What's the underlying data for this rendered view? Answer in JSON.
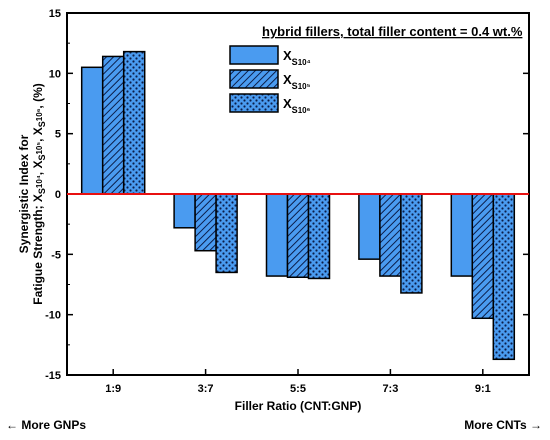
{
  "chart_data": {
    "type": "bar",
    "title": "hybrid fillers, total filler content = 0.4 wt.%",
    "xlabel": "Filler Ratio (CNT:GNP)",
    "ylabel_line1": "Synergistic Index for",
    "ylabel_line2": "Fatigue Strength; X",
    "ylabel_unit": "(%)",
    "categories": [
      "1:9",
      "3:7",
      "5:5",
      "7:3",
      "9:1"
    ],
    "ylim": [
      -15,
      15
    ],
    "yticks": [
      -15,
      -10,
      -5,
      0,
      5,
      10,
      15
    ],
    "series": [
      {
        "name": "X",
        "sub": "S",
        "exp": "10⁴",
        "pattern": "solid",
        "values": [
          10.5,
          -2.8,
          -6.8,
          -5.4,
          -6.8
        ]
      },
      {
        "name": "X",
        "sub": "S",
        "exp": "10⁵",
        "pattern": "hatch",
        "values": [
          11.4,
          -4.7,
          -6.9,
          -6.8,
          -10.3
        ]
      },
      {
        "name": "X",
        "sub": "S",
        "exp": "10⁶",
        "pattern": "dots",
        "values": [
          11.8,
          -6.5,
          -7.0,
          -8.2,
          -13.7
        ]
      }
    ],
    "colors": {
      "bar_fill": "#4a9bf0",
      "zero_line": "#e81010",
      "edge": "#000000"
    },
    "grid": false,
    "legend_position": "top-right"
  },
  "annotations": {
    "left_note": "More GNPs",
    "right_note": "More CNTs"
  }
}
